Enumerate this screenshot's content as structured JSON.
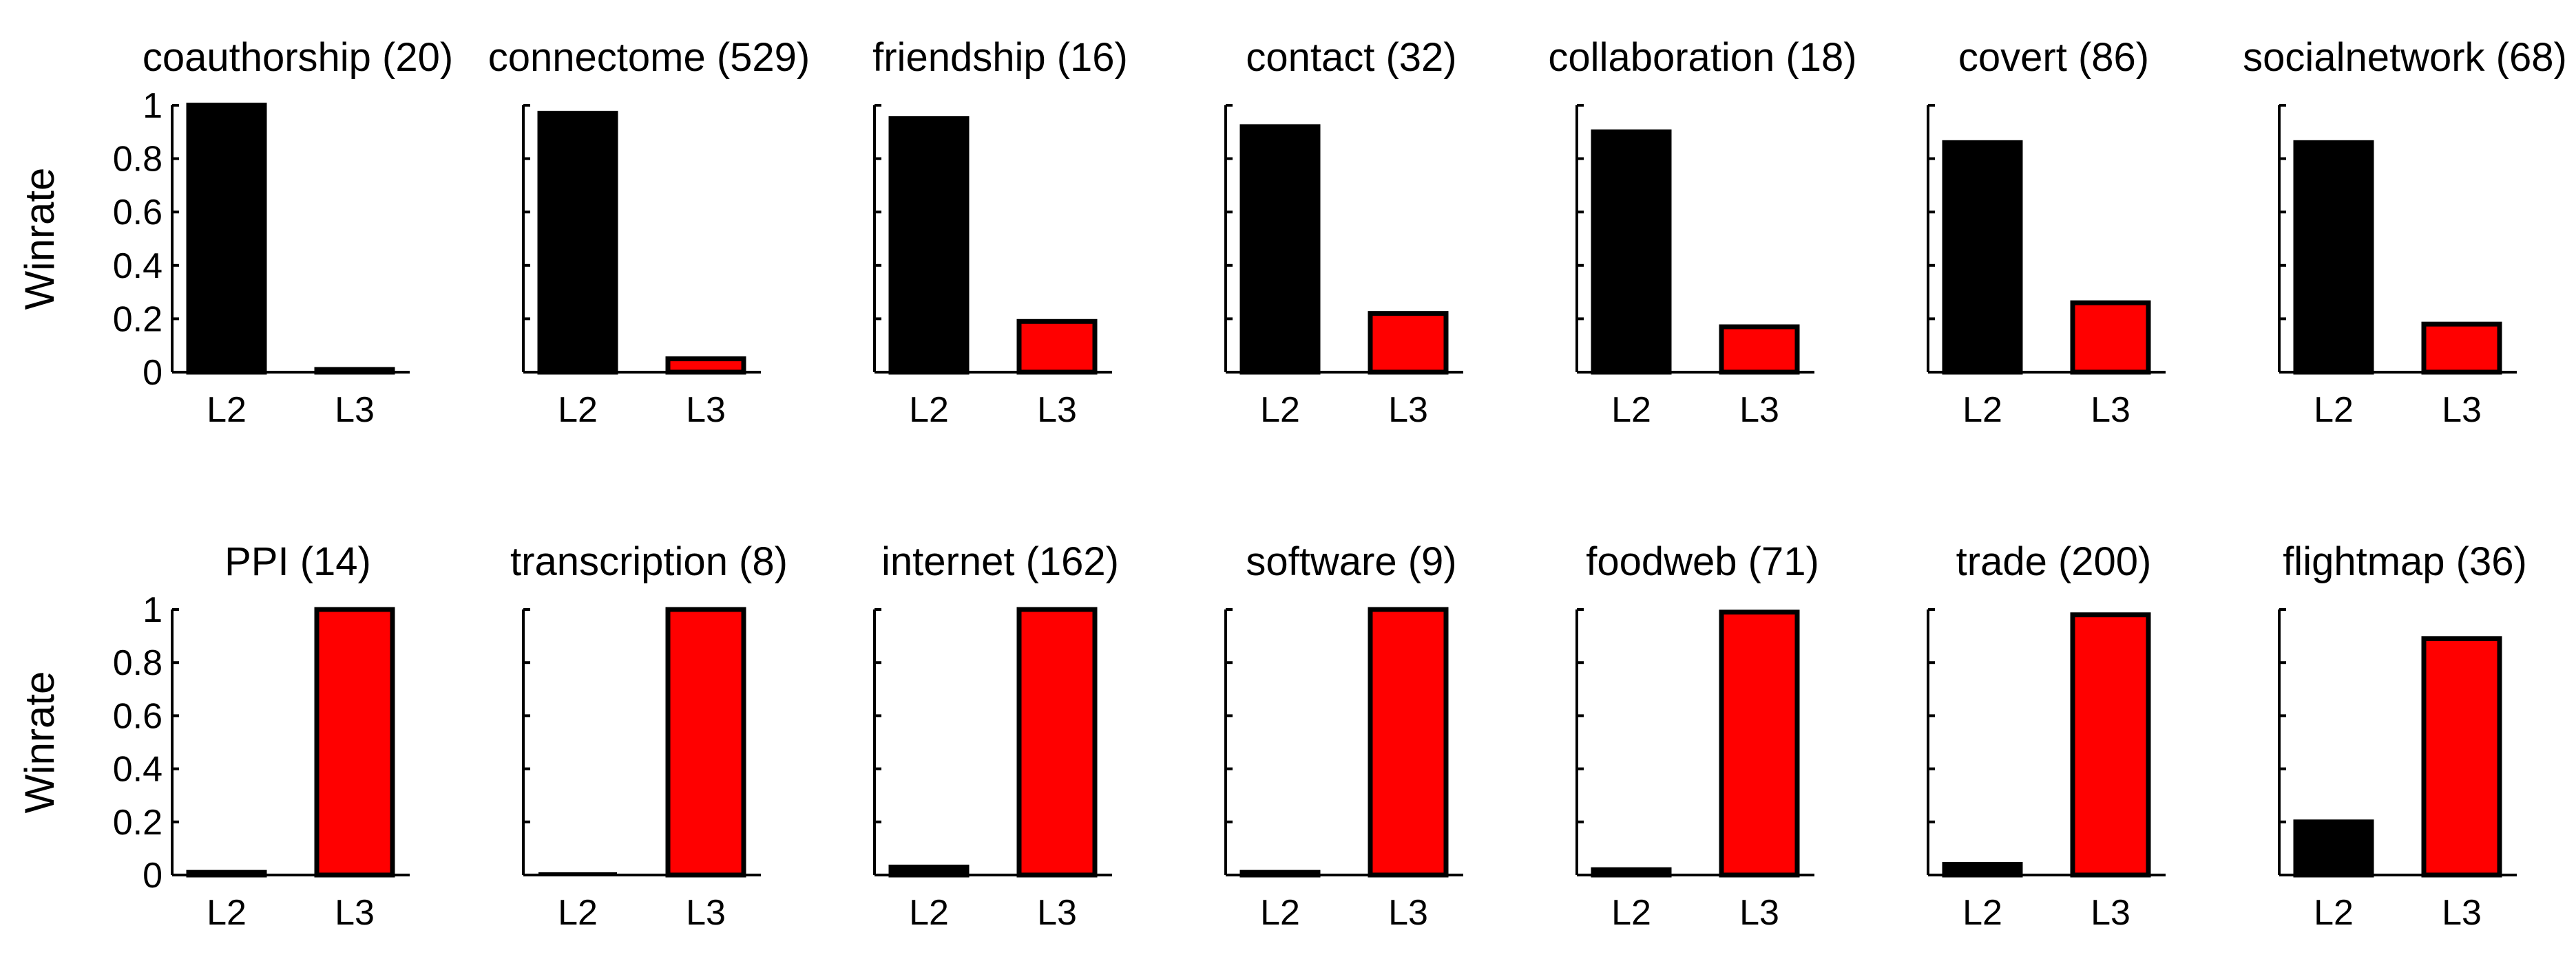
{
  "chart_data": {
    "type": "bar",
    "ylabel": "Winrate",
    "ylim": [
      0,
      1
    ],
    "yticks": [
      "0",
      "0.2",
      "0.4",
      "0.6",
      "0.8",
      "1"
    ],
    "colors": {
      "L2": "#000000",
      "L3": "#ff0000",
      "outline": "#000000"
    },
    "panels": [
      {
        "title": "coauthorship (20)",
        "categories": [
          "L2",
          "L3"
        ],
        "values": [
          1.0,
          0.01
        ]
      },
      {
        "title": "connectome (529)",
        "categories": [
          "L2",
          "L3"
        ],
        "values": [
          0.97,
          0.05
        ]
      },
      {
        "title": "friendship (16)",
        "categories": [
          "L2",
          "L3"
        ],
        "values": [
          0.95,
          0.19
        ]
      },
      {
        "title": "contact (32)",
        "categories": [
          "L2",
          "L3"
        ],
        "values": [
          0.92,
          0.22
        ]
      },
      {
        "title": "collaboration (18)",
        "categories": [
          "L2",
          "L3"
        ],
        "values": [
          0.9,
          0.17
        ]
      },
      {
        "title": "covert (86)",
        "categories": [
          "L2",
          "L3"
        ],
        "values": [
          0.86,
          0.26
        ]
      },
      {
        "title": "socialnetwork (68)",
        "categories": [
          "L2",
          "L3"
        ],
        "values": [
          0.86,
          0.18
        ]
      },
      {
        "title": "PPI (14)",
        "categories": [
          "L2",
          "L3"
        ],
        "values": [
          0.01,
          1.0
        ]
      },
      {
        "title": "transcription (8)",
        "categories": [
          "L2",
          "L3"
        ],
        "values": [
          0.005,
          1.0
        ]
      },
      {
        "title": "internet (162)",
        "categories": [
          "L2",
          "L3"
        ],
        "values": [
          0.03,
          1.0
        ]
      },
      {
        "title": "software (9)",
        "categories": [
          "L2",
          "L3"
        ],
        "values": [
          0.01,
          1.0
        ]
      },
      {
        "title": "foodweb (71)",
        "categories": [
          "L2",
          "L3"
        ],
        "values": [
          0.02,
          0.99
        ]
      },
      {
        "title": "trade (200)",
        "categories": [
          "L2",
          "L3"
        ],
        "values": [
          0.04,
          0.98
        ]
      },
      {
        "title": "flightmap (36)",
        "categories": [
          "L2",
          "L3"
        ],
        "values": [
          0.2,
          0.89
        ]
      }
    ]
  }
}
